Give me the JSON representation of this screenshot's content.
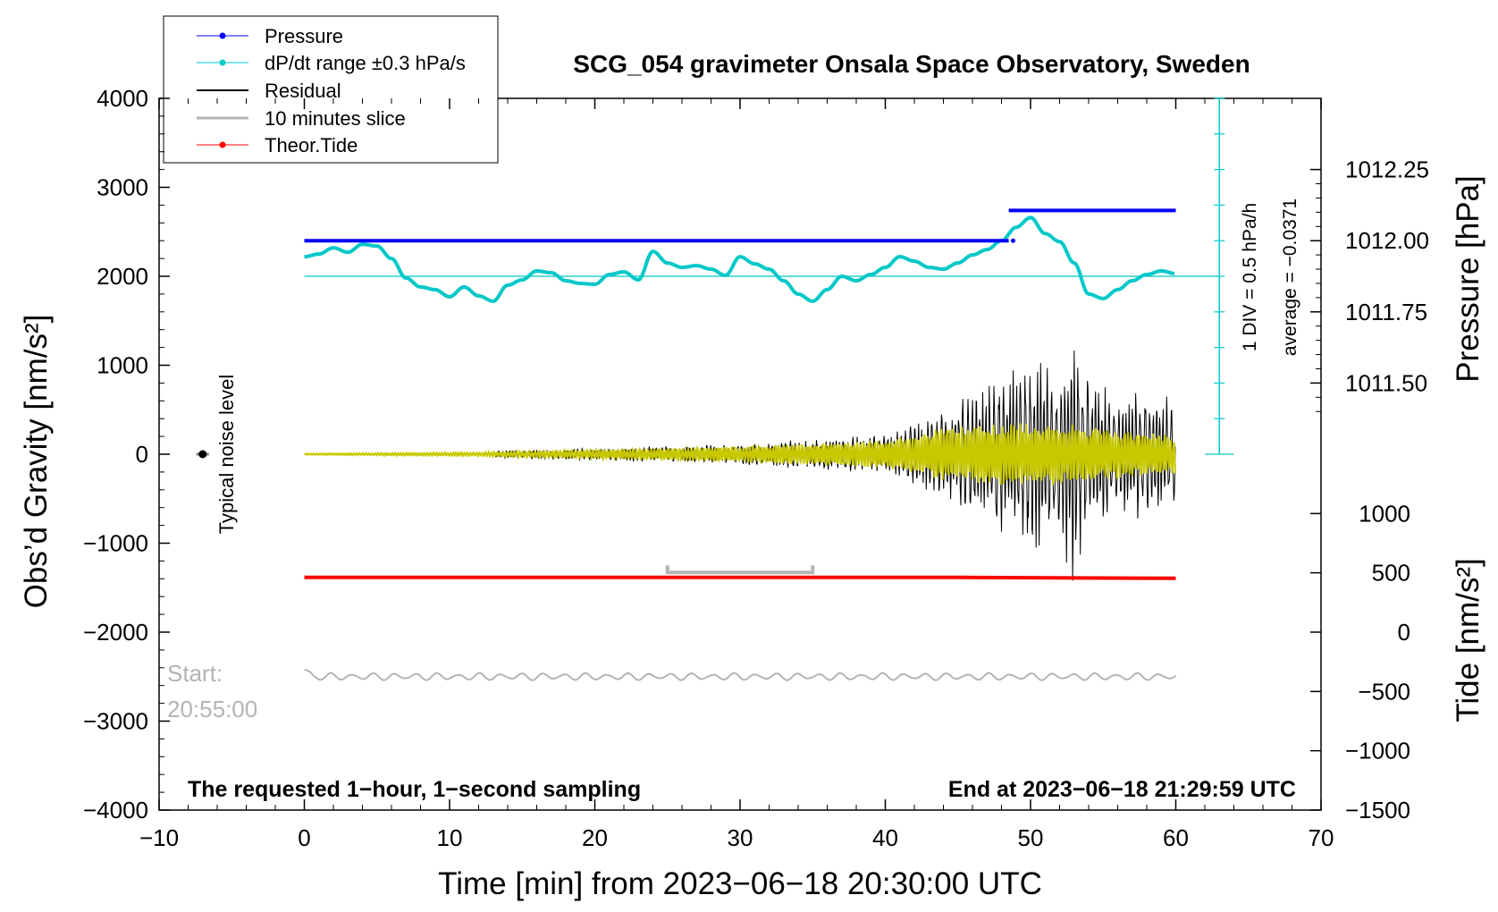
{
  "chart_data": {
    "type": "line",
    "title": "SCG_054 gravimeter Onsala Space Observatory, Sweden",
    "xlabel": "Time [min] from 2023−06−18 20:30:00 UTC",
    "ylabel_left": "Obs’d Gravity [nm/s²]",
    "ylabel_pressure": "Pressure [hPa]",
    "ylabel_tide": "Tide [nm/s²]",
    "xlim": [
      -10,
      70
    ],
    "ylim_left": [
      -4000,
      4000
    ],
    "x_ticks": [
      -10,
      0,
      10,
      20,
      30,
      40,
      50,
      60,
      70
    ],
    "x_tick_labels": [
      "−10",
      "0",
      "10",
      "20",
      "30",
      "40",
      "50",
      "60",
      "70"
    ],
    "y_left_ticks": [
      4000,
      3000,
      2000,
      1000,
      0,
      -1000,
      -2000,
      -3000,
      -4000
    ],
    "y_left_tick_labels": [
      "4000",
      "3000",
      "2000",
      "1000",
      "0",
      "−1000",
      "−2000",
      "−3000",
      "−4000"
    ],
    "pressure_axis": {
      "ticks": [
        1012.25,
        1012.0,
        1011.75,
        1011.5
      ],
      "tick_labels": [
        "1012.25",
        "1012.00",
        "1011.75",
        "1011.50"
      ],
      "gravity_equiv": [
        3200,
        2400,
        1600,
        800
      ]
    },
    "tide_axis": {
      "ticks": [
        1000,
        500,
        0,
        -500,
        -1000,
        -1500
      ],
      "tick_labels": [
        "1000",
        "500",
        "0",
        "−500",
        "−1000",
        "−1500"
      ],
      "gravity_equiv": [
        -667,
        -1333,
        -2000,
        -2667,
        -3333,
        -4000
      ]
    },
    "legend": [
      {
        "label": "Pressure",
        "color": "#0000ff"
      },
      {
        "label": "dP/dt range ±0.3 hPa/s",
        "color": "#00c8c8"
      },
      {
        "label": "Residual",
        "color": "#000000"
      },
      {
        "label": "10 minutes slice",
        "color": "#b4b4b4"
      },
      {
        "label": "Theor.Tide",
        "color": "#ff0000"
      }
    ],
    "series": [
      {
        "name": "Pressure",
        "color": "#0000ff",
        "segments": [
          {
            "x": [
              0,
              48.5
            ],
            "y": [
              2400,
              2400
            ]
          },
          {
            "x": [
              48.5,
              60
            ],
            "y": [
              2740,
              2740
            ]
          }
        ]
      },
      {
        "name": "dP/dt",
        "color": "#00c8c8",
        "x": [
          0,
          1,
          2,
          3,
          4,
          5,
          6,
          7,
          8,
          9,
          10,
          11,
          12,
          13,
          14,
          15,
          16,
          17,
          18,
          19,
          20,
          21,
          22,
          23,
          24,
          25,
          26,
          27,
          28,
          29,
          30,
          31,
          32,
          33,
          34,
          35,
          36,
          37,
          38,
          39,
          40,
          41,
          42,
          43,
          44,
          45,
          46,
          47,
          48,
          49,
          50,
          51,
          52,
          53,
          54,
          55,
          56,
          57,
          58,
          59,
          60
        ],
        "y": [
          2220,
          2250,
          2320,
          2270,
          2360,
          2340,
          2200,
          1980,
          1880,
          1850,
          1770,
          1880,
          1780,
          1720,
          1900,
          1960,
          2060,
          2040,
          1950,
          1920,
          1910,
          2020,
          2050,
          1960,
          2280,
          2150,
          2100,
          2120,
          2080,
          2010,
          2220,
          2140,
          2080,
          1950,
          1800,
          1720,
          1850,
          2000,
          1950,
          2020,
          2100,
          2220,
          2170,
          2100,
          2080,
          2150,
          2240,
          2300,
          2400,
          2550,
          2660,
          2480,
          2390,
          2150,
          1800,
          1750,
          1850,
          1950,
          2020,
          2060,
          2030
        ]
      },
      {
        "name": "dP/dt zero line",
        "color": "#00c8c8",
        "x": [
          0,
          60
        ],
        "y": [
          2000,
          2000
        ]
      },
      {
        "name": "Residual",
        "color": "#000000",
        "x_range": [
          13,
          60
        ],
        "envelope_x": [
          13,
          20,
          30,
          40,
          44,
          46,
          48,
          50,
          52,
          53,
          54,
          56,
          58,
          60
        ],
        "envelope_amp": [
          40,
          70,
          120,
          220,
          480,
          700,
          900,
          1100,
          1000,
          1500,
          900,
          700,
          750,
          650
        ]
      },
      {
        "name": "Filtered residual",
        "color": "#c8c800",
        "x_range": [
          0,
          60
        ],
        "envelope_x": [
          0,
          13,
          20,
          30,
          40,
          44,
          48,
          52,
          56,
          60
        ],
        "envelope_amp": [
          8,
          25,
          50,
          90,
          160,
          300,
          380,
          350,
          280,
          220
        ]
      },
      {
        "name": "Theor.Tide",
        "color": "#ff0000",
        "x": [
          0,
          45,
          60
        ],
        "y": [
          -1385,
          -1385,
          -1395
        ]
      },
      {
        "name": "10 minutes slice",
        "color": "#b4b4b4",
        "x": [
          25,
          35
        ],
        "y": [
          -1330,
          -1330
        ]
      },
      {
        "name": "Start trace",
        "color": "#b4b4b4",
        "x_range": [
          0,
          60
        ],
        "baseline": -2500,
        "amp": 80
      }
    ],
    "noise_marker": {
      "x": -7,
      "y": 0,
      "label": "Typical noise level"
    },
    "scale_bar": {
      "label_div": "1 DIV = 0.5 hPa/h",
      "label_avg": "average = −0.0371"
    },
    "annotations": {
      "start_label": "Start:",
      "start_time": "20:55:00",
      "left_note": "The requested 1−hour, 1−second sampling",
      "right_note": "End at 2023−06−18 21:29:59 UTC"
    }
  }
}
